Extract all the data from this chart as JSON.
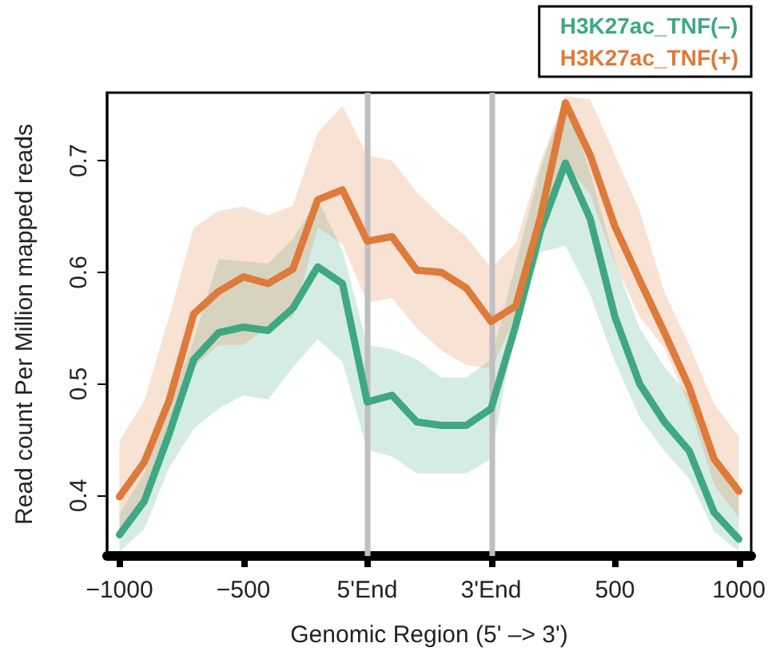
{
  "chart_data": {
    "type": "line",
    "xlabel": "Genomic Region (5' –> 3')",
    "ylabel": "Read count Per Million mapped reads",
    "categories": [
      "−1000",
      null,
      null,
      null,
      null,
      "−500",
      null,
      null,
      null,
      null,
      "5'End",
      null,
      null,
      null,
      null,
      "3'End",
      null,
      null,
      null,
      null,
      "500",
      null,
      null,
      null,
      null,
      "1000"
    ],
    "series": [
      {
        "name": "H3K27ac_TNF(–)",
        "color": "#3fa882",
        "values": [
          0.365,
          0.395,
          0.455,
          0.522,
          0.546,
          0.551,
          0.548,
          0.568,
          0.605,
          0.59,
          0.484,
          0.49,
          0.466,
          0.463,
          0.463,
          0.478,
          0.553,
          0.638,
          0.698,
          0.648,
          0.56,
          0.5,
          0.466,
          0.44,
          0.385,
          0.361
        ],
        "upper": [
          0.384,
          0.42,
          0.48,
          0.54,
          0.612,
          0.61,
          0.608,
          0.63,
          0.665,
          0.62,
          0.535,
          0.531,
          0.522,
          0.506,
          0.506,
          0.522,
          0.608,
          0.694,
          0.755,
          0.69,
          0.61,
          0.55,
          0.515,
          0.49,
          0.435,
          0.408
        ],
        "lower": [
          0.35,
          0.37,
          0.425,
          0.46,
          0.478,
          0.49,
          0.486,
          0.515,
          0.54,
          0.52,
          0.441,
          0.435,
          0.42,
          0.42,
          0.42,
          0.433,
          0.555,
          0.618,
          0.624,
          0.58,
          0.52,
          0.47,
          0.44,
          0.415,
          0.368,
          0.35
        ]
      },
      {
        "name": "H3K27ac_TNF(+)",
        "color": "#de7a3a",
        "values": [
          0.399,
          0.43,
          0.485,
          0.563,
          0.583,
          0.596,
          0.59,
          0.603,
          0.665,
          0.674,
          0.628,
          0.632,
          0.602,
          0.6,
          0.586,
          0.556,
          0.57,
          0.65,
          0.752,
          0.705,
          0.641,
          0.593,
          0.546,
          0.497,
          0.433,
          0.404
        ],
        "upper": [
          0.449,
          0.485,
          0.56,
          0.64,
          0.655,
          0.659,
          0.651,
          0.66,
          0.725,
          0.749,
          0.705,
          0.7,
          0.672,
          0.65,
          0.632,
          0.604,
          0.626,
          0.7,
          0.758,
          0.755,
          0.705,
          0.655,
          0.582,
          0.535,
          0.482,
          0.453
        ],
        "lower": [
          0.36,
          0.4,
          0.45,
          0.515,
          0.535,
          0.535,
          0.551,
          0.56,
          0.64,
          0.625,
          0.573,
          0.577,
          0.55,
          0.53,
          0.517,
          0.514,
          0.56,
          0.65,
          0.698,
          0.67,
          0.608,
          0.56,
          0.532,
          0.48,
          0.41,
          0.38
        ]
      }
    ],
    "ylim": [
      0.346,
      0.761
    ],
    "yticks": [
      0.4,
      0.5,
      0.6,
      0.7
    ],
    "ref_lines": [
      {
        "axis": "x",
        "value": "5'End",
        "color": "#bfbfbf"
      },
      {
        "axis": "x",
        "value": "3'End",
        "color": "#bfbfbf"
      }
    ],
    "legend": "top right",
    "marker": "none",
    "line_style": "solid"
  }
}
